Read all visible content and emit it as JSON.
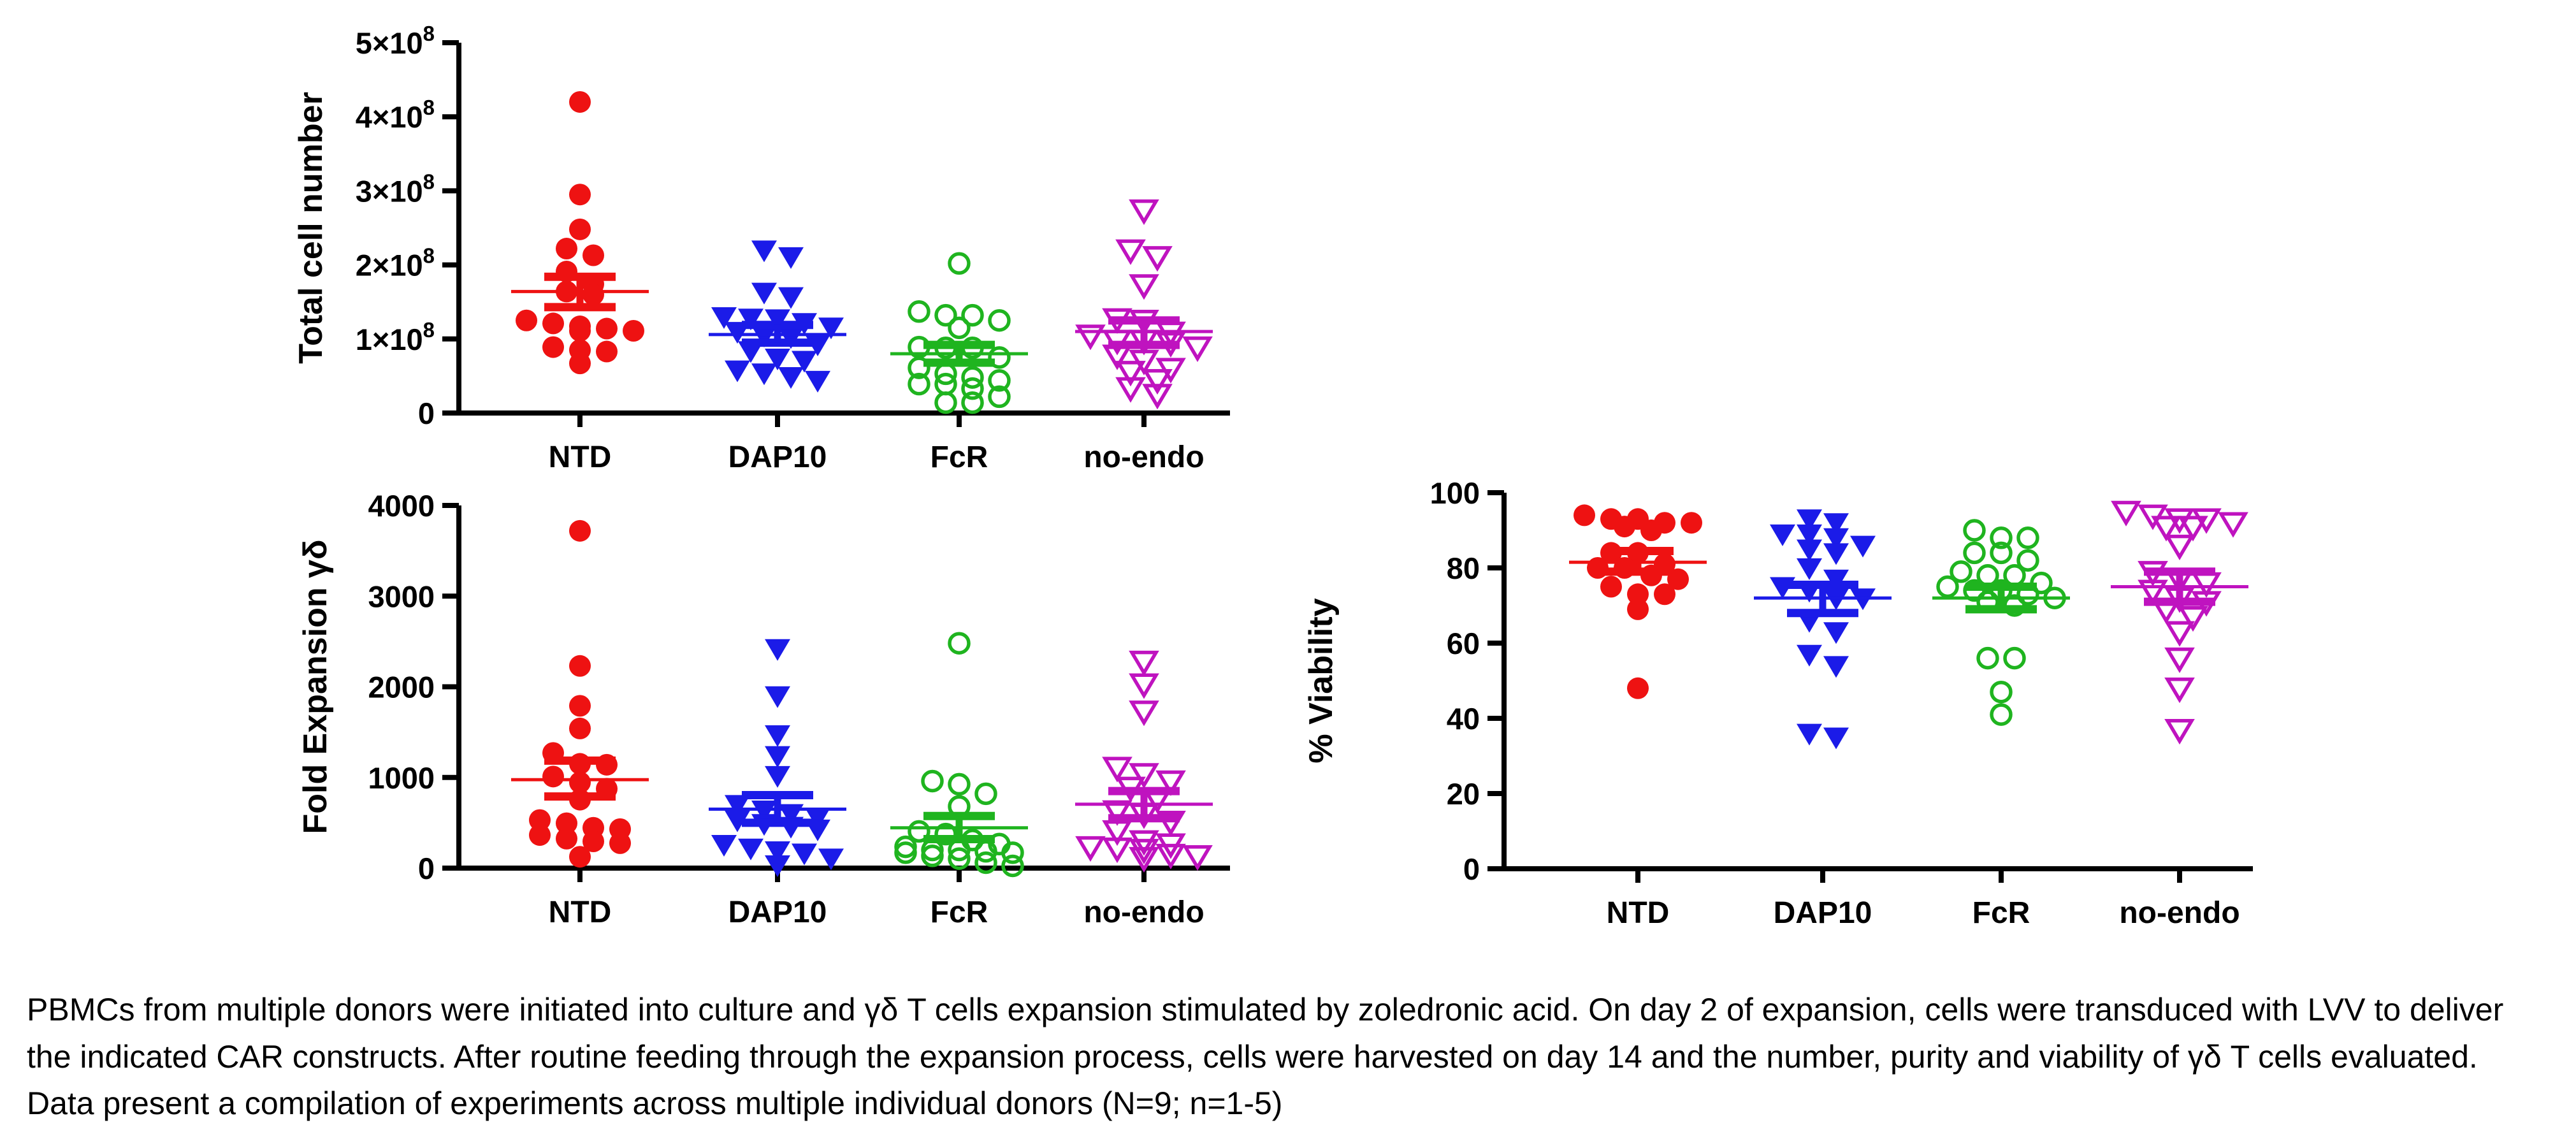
{
  "caption": "PBMCs from multiple donors were initiated into culture and γδ T cells expansion stimulated by zoledronic acid. On day 2 of expansion, cells were transduced with LVV to deliver the indicated CAR constructs. After routine feeding through the expansion process, cells were harvested on day 14 and the number, purity and viability of γδ T cells evaluated. Data present a compilation of experiments across multiple individual donors (N=9; n=1-5)",
  "colors": {
    "NTD": "#EE1212",
    "DAP10": "#1B1BE8",
    "FcR": "#1FB41F",
    "no-endo": "#BF13BF",
    "axis": "#000000"
  },
  "markers": {
    "NTD": "filled-circle",
    "DAP10": "filled-triangle-down",
    "FcR": "open-circle",
    "no-endo": "open-triangle-down"
  },
  "chart_data": [
    {
      "id": "total_cell_number",
      "type": "scatter",
      "title": "",
      "xlabel": "",
      "ylabel": "Total cell number",
      "y_values_unit": "×10^8 cells",
      "ylim": [
        0,
        5
      ],
      "yticks": [
        {
          "value": 0,
          "label": "0"
        },
        {
          "value": 1,
          "label": "1×10^8"
        },
        {
          "value": 2,
          "label": "2×10^8"
        },
        {
          "value": 3,
          "label": "3×10^8"
        },
        {
          "value": 4,
          "label": "4×10^8"
        },
        {
          "value": 5,
          "label": "5×10^8"
        }
      ],
      "categories": [
        "NTD",
        "DAP10",
        "FcR",
        "no-endo"
      ],
      "legend": "none",
      "grid": false,
      "error_bar_type": "mean ± SEM",
      "series": [
        {
          "name": "NTD",
          "marker": "filled-circle",
          "color": "#EE1212",
          "values": [
            4.2,
            2.95,
            2.48,
            2.22,
            2.13,
            1.91,
            1.74,
            1.64,
            1.6,
            1.25,
            1.21,
            1.17,
            1.14,
            1.11,
            1.11,
            0.89,
            0.85,
            0.83,
            0.67
          ],
          "mean": 1.64,
          "sem_upper": 1.84,
          "sem_lower": 1.43
        },
        {
          "name": "DAP10",
          "marker": "filled-triangle-down",
          "color": "#1B1BE8",
          "values": [
            2.2,
            2.11,
            1.63,
            1.57,
            1.3,
            1.28,
            1.27,
            1.22,
            1.16,
            1.1,
            1.05,
            1.03,
            0.93,
            0.84,
            0.74,
            0.71,
            0.58,
            0.54,
            0.49,
            0.44
          ],
          "mean": 1.06,
          "sem_upper": 1.19,
          "sem_lower": 0.95
        },
        {
          "name": "FcR",
          "marker": "open-circle",
          "color": "#1FB41F",
          "values": [
            2.02,
            1.37,
            1.32,
            1.32,
            1.25,
            1.15,
            0.89,
            0.88,
            0.88,
            0.75,
            0.61,
            0.53,
            0.48,
            0.44,
            0.39,
            0.39,
            0.33,
            0.22,
            0.14,
            0.14
          ],
          "mean": 0.8,
          "sem_upper": 0.92,
          "sem_lower": 0.68
        },
        {
          "name": "no-endo",
          "marker": "open-triangle-down",
          "color": "#BF13BF",
          "values": [
            2.74,
            2.2,
            2.11,
            1.73,
            1.27,
            1.25,
            1.09,
            1.05,
            0.98,
            0.98,
            0.95,
            0.89,
            0.78,
            0.71,
            0.6,
            0.56,
            0.45,
            0.34,
            0.25
          ],
          "mean": 1.1,
          "sem_upper": 1.25,
          "sem_lower": 0.92
        }
      ]
    },
    {
      "id": "fold_expansion",
      "type": "scatter",
      "title": "",
      "xlabel": "",
      "ylabel": "Fold Expansion γδ",
      "y_values_unit": "fold",
      "ylim": [
        0,
        4000
      ],
      "yticks": [
        {
          "value": 0,
          "label": "0"
        },
        {
          "value": 1000,
          "label": "1000"
        },
        {
          "value": 2000,
          "label": "2000"
        },
        {
          "value": 3000,
          "label": "3000"
        },
        {
          "value": 4000,
          "label": "4000"
        }
      ],
      "categories": [
        "NTD",
        "DAP10",
        "FcR",
        "no-endo"
      ],
      "legend": "none",
      "grid": false,
      "error_bar_type": "mean ± SEM",
      "series": [
        {
          "name": "NTD",
          "marker": "filled-circle",
          "color": "#EE1212",
          "values": [
            3720,
            2230,
            1790,
            1540,
            1270,
            1150,
            1140,
            1010,
            945,
            875,
            755,
            530,
            495,
            445,
            430,
            365,
            325,
            295,
            275,
            125
          ],
          "mean": 975,
          "sem_upper": 1185,
          "sem_lower": 790
        },
        {
          "name": "DAP10",
          "marker": "filled-triangle-down",
          "color": "#1B1BE8",
          "values": [
            2420,
            1900,
            1470,
            1240,
            1020,
            700,
            640,
            600,
            560,
            530,
            490,
            460,
            430,
            260,
            220,
            190,
            165,
            110,
            35
          ],
          "mean": 650,
          "sem_upper": 805,
          "sem_lower": 500
        },
        {
          "name": "FcR",
          "marker": "open-circle",
          "color": "#1FB41F",
          "values": [
            2480,
            960,
            925,
            820,
            680,
            405,
            375,
            310,
            265,
            235,
            200,
            200,
            185,
            170,
            170,
            135,
            105,
            60,
            25
          ],
          "mean": 445,
          "sem_upper": 575,
          "sem_lower": 320
        },
        {
          "name": "no-endo",
          "marker": "open-triangle-down",
          "color": "#BF13BF",
          "values": [
            2280,
            2030,
            1730,
            1110,
            1040,
            960,
            890,
            765,
            630,
            595,
            515,
            410,
            300,
            265,
            235,
            220,
            205,
            150,
            135,
            115
          ],
          "mean": 705,
          "sem_upper": 850,
          "sem_lower": 550
        }
      ]
    },
    {
      "id": "percent_viability",
      "type": "scatter",
      "title": "",
      "xlabel": "",
      "ylabel": "% Viability",
      "y_values_unit": "%",
      "ylim": [
        0,
        100
      ],
      "yticks": [
        {
          "value": 0,
          "label": "0"
        },
        {
          "value": 20,
          "label": "20"
        },
        {
          "value": 40,
          "label": "40"
        },
        {
          "value": 60,
          "label": "60"
        },
        {
          "value": 80,
          "label": "80"
        },
        {
          "value": 100,
          "label": "100"
        }
      ],
      "categories": [
        "NTD",
        "DAP10",
        "FcR",
        "no-endo"
      ],
      "legend": "none",
      "grid": false,
      "error_bar_type": "mean ± SEM",
      "series": [
        {
          "name": "NTD",
          "marker": "filled-circle",
          "color": "#EE1212",
          "values": [
            94,
            93,
            93,
            92,
            92,
            91,
            90,
            84,
            84,
            81,
            80,
            80,
            78,
            77,
            75,
            73,
            73,
            69,
            48
          ],
          "mean": 81.5,
          "sem_upper": 84.5,
          "sem_lower": 79
        },
        {
          "name": "DAP10",
          "marker": "filled-triangle-down",
          "color": "#1B1BE8",
          "values": [
            93,
            92,
            89,
            89,
            88,
            86,
            85,
            84,
            80,
            77,
            75,
            74,
            72,
            72,
            66,
            63,
            57,
            54,
            36,
            35
          ],
          "mean": 72,
          "sem_upper": 75.5,
          "sem_lower": 68
        },
        {
          "name": "FcR",
          "marker": "open-circle",
          "color": "#1FB41F",
          "values": [
            90,
            88,
            88,
            84,
            84,
            82,
            79,
            78,
            78,
            76,
            75,
            74,
            74,
            73,
            72,
            71,
            70,
            56,
            56,
            47,
            41
          ],
          "mean": 72,
          "sem_upper": 75,
          "sem_lower": 69
        },
        {
          "name": "no-endo",
          "marker": "open-triangle-down",
          "color": "#BF13BF",
          "values": [
            95,
            94,
            93,
            93,
            92,
            91,
            91,
            86,
            79,
            77,
            76,
            74,
            72,
            71,
            69,
            67,
            63,
            56,
            48,
            37
          ],
          "mean": 75,
          "sem_upper": 79,
          "sem_lower": 71
        }
      ]
    }
  ]
}
